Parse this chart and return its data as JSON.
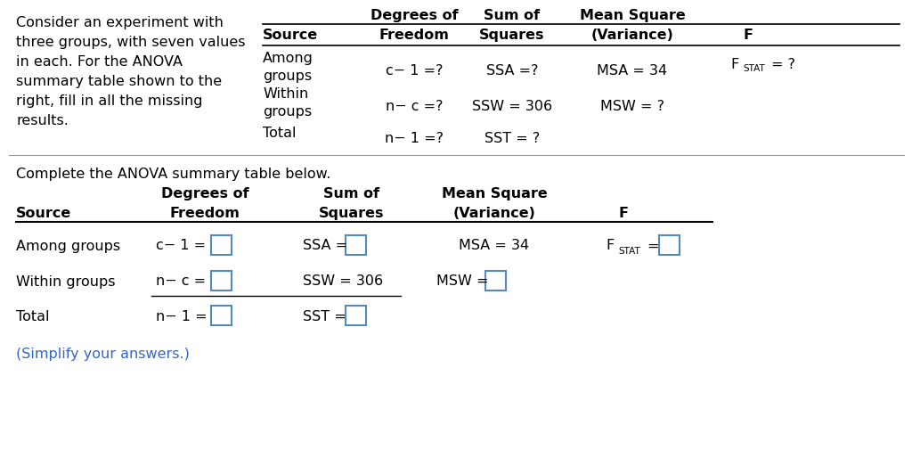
{
  "bg_color": "#ffffff",
  "text_color": "#000000",
  "blue_color": "#3366CC",
  "box_color": "#5588BB",
  "fig_w": 10.24,
  "fig_h": 5.06,
  "dpi": 100,
  "question_text_lines": [
    "Consider an experiment with",
    "three groups, with seven values",
    "in each. For the ANOVA",
    "summary table shown to the",
    "right, fill in all the missing",
    "results."
  ],
  "complete_text": "Complete the ANOVA summary table below.",
  "simplify_text": "(Simplify your answers.)"
}
